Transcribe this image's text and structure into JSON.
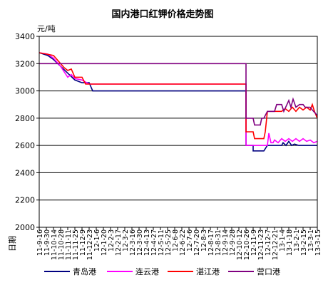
{
  "chart_data": {
    "type": "line",
    "title": "国内港口红钾价格走势图",
    "ylabel": "元/吨",
    "xlabel": "日期",
    "ylim": [
      2000,
      3400
    ],
    "yticks": [
      2000,
      2200,
      2400,
      2600,
      2800,
      3000,
      3200,
      3400
    ],
    "grid": true,
    "legend_position": "bottom",
    "x_ticks": [
      "11-9-16",
      "11-9-30",
      "11-10-14",
      "11-10-28",
      "11-11-11",
      "11-11-25",
      "11-12-9",
      "11-12-23",
      "12-1-6",
      "12-1-20",
      "12-2-3",
      "12-2-17",
      "12-3-2",
      "12-3-16",
      "12-3-30",
      "12-4-13",
      "12-4-27",
      "12-5-11",
      "12-5-25",
      "12-6-8",
      "12-6-22",
      "12-7-6",
      "12-7-20",
      "12-8-3",
      "12-8-17",
      "12-8-31",
      "12-9-14",
      "12-9-28",
      "12-10-12",
      "12-10-26",
      "12-11-9",
      "12-11-23",
      "12-12-7",
      "12-12-21",
      "13-1-4",
      "13-1-18",
      "13-2-1",
      "13-2-15",
      "13-3-1",
      "13-3-15"
    ],
    "series": [
      {
        "name": "青岛港",
        "color": "#000080",
        "points": [
          [
            0,
            3280
          ],
          [
            1.2,
            3260
          ],
          [
            2,
            3230
          ],
          [
            3,
            3180
          ],
          [
            4,
            3130
          ],
          [
            5,
            3080
          ],
          [
            6,
            3060
          ],
          [
            7,
            3060
          ],
          [
            7.5,
            3000
          ],
          [
            29,
            3000
          ],
          [
            29,
            2600
          ],
          [
            30,
            2600
          ],
          [
            30,
            2560
          ],
          [
            31,
            2560
          ],
          [
            31.5,
            2560
          ],
          [
            32,
            2600
          ],
          [
            34,
            2600
          ],
          [
            34.2,
            2620
          ],
          [
            34.6,
            2600
          ],
          [
            35,
            2630
          ],
          [
            35.4,
            2600
          ],
          [
            35.8,
            2610
          ],
          [
            36.4,
            2600
          ],
          [
            39,
            2600
          ]
        ]
      },
      {
        "name": "连云港",
        "color": "#ff00ff",
        "points": [
          [
            0,
            3280
          ],
          [
            1.2,
            3270
          ],
          [
            2,
            3240
          ],
          [
            3,
            3180
          ],
          [
            3.5,
            3140
          ],
          [
            4,
            3100
          ],
          [
            4.5,
            3120
          ],
          [
            5,
            3090
          ],
          [
            6,
            3080
          ],
          [
            7,
            3050
          ],
          [
            29,
            3050
          ],
          [
            29,
            2600
          ],
          [
            30,
            2600
          ],
          [
            31,
            2600
          ],
          [
            32,
            2600
          ],
          [
            32.2,
            2690
          ],
          [
            32.5,
            2620
          ],
          [
            32.8,
            2620
          ],
          [
            33,
            2640
          ],
          [
            33.5,
            2620
          ],
          [
            34,
            2650
          ],
          [
            34.5,
            2630
          ],
          [
            35,
            2650
          ],
          [
            35.5,
            2630
          ],
          [
            36,
            2650
          ],
          [
            36.5,
            2630
          ],
          [
            37,
            2650
          ],
          [
            37.5,
            2630
          ],
          [
            38,
            2640
          ],
          [
            38.5,
            2620
          ],
          [
            39,
            2630
          ]
        ]
      },
      {
        "name": "湛江港",
        "color": "#ff0000",
        "points": [
          [
            0,
            3280
          ],
          [
            1,
            3270
          ],
          [
            2,
            3260
          ],
          [
            3,
            3200
          ],
          [
            3.5,
            3170
          ],
          [
            4,
            3150
          ],
          [
            4.5,
            3160
          ],
          [
            5,
            3100
          ],
          [
            6,
            3100
          ],
          [
            6.5,
            3050
          ],
          [
            29,
            3050
          ],
          [
            29,
            2700
          ],
          [
            30,
            2700
          ],
          [
            30.2,
            2650
          ],
          [
            31,
            2650
          ],
          [
            31.5,
            2650
          ],
          [
            31.7,
            2700
          ],
          [
            32,
            2850
          ],
          [
            33,
            2850
          ],
          [
            34,
            2850
          ],
          [
            34.5,
            2870
          ],
          [
            35,
            2850
          ],
          [
            35.5,
            2880
          ],
          [
            36,
            2850
          ],
          [
            36.5,
            2880
          ],
          [
            37,
            2860
          ],
          [
            37.5,
            2880
          ],
          [
            38,
            2860
          ],
          [
            38.3,
            2900
          ],
          [
            38.6,
            2850
          ],
          [
            39,
            2800
          ]
        ]
      },
      {
        "name": "营口港",
        "color": "#800080",
        "points": [
          [
            0,
            3200
          ],
          [
            29,
            3200
          ],
          [
            29,
            2800
          ],
          [
            30,
            2800
          ],
          [
            30.2,
            2750
          ],
          [
            31,
            2750
          ],
          [
            31.2,
            2800
          ],
          [
            31.5,
            2800
          ],
          [
            32,
            2850
          ],
          [
            33,
            2850
          ],
          [
            33.3,
            2900
          ],
          [
            34,
            2900
          ],
          [
            34.3,
            2850
          ],
          [
            35,
            2930
          ],
          [
            35.3,
            2880
          ],
          [
            35.6,
            2940
          ],
          [
            36,
            2880
          ],
          [
            36.5,
            2900
          ],
          [
            37,
            2900
          ],
          [
            37.3,
            2880
          ],
          [
            38,
            2880
          ],
          [
            38.3,
            2860
          ],
          [
            39,
            2820
          ]
        ]
      }
    ]
  }
}
